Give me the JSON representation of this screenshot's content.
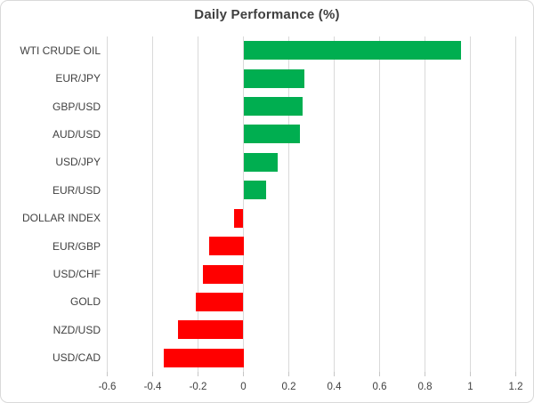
{
  "chart_data": {
    "type": "bar",
    "orientation": "horizontal",
    "title": "Daily Performance (%)",
    "categories": [
      "WTI CRUDE OIL",
      "EUR/JPY",
      "GBP/USD",
      "AUD/USD",
      "USD/JPY",
      "EUR/USD",
      "DOLLAR INDEX",
      "EUR/GBP",
      "USD/CHF",
      "GOLD",
      "NZD/USD",
      "USD/CAD"
    ],
    "values": [
      0.96,
      0.27,
      0.26,
      0.25,
      0.15,
      0.1,
      -0.04,
      -0.15,
      -0.18,
      -0.21,
      -0.29,
      -0.35
    ],
    "xlabel": "",
    "ylabel": "",
    "xlim": [
      -0.6,
      1.2
    ],
    "x_ticks": [
      -0.6,
      -0.4,
      -0.2,
      0,
      0.2,
      0.4,
      0.6,
      0.8,
      1,
      1.2
    ],
    "x_tick_labels": [
      "-0.6",
      "-0.4",
      "-0.2",
      "0",
      "0.2",
      "0.4",
      "0.6",
      "0.8",
      "1",
      "1.2"
    ],
    "grid": "vertical-only",
    "legend": "none",
    "colors": {
      "positive": "#00AE50",
      "negative": "#FF0000",
      "gridline": "#D9D9D9",
      "tick": "#C6C6C6",
      "axis_text": "#404040",
      "title_text": "#3F3F3F",
      "border": "#D9D9D9",
      "background": "#FFFFFF"
    }
  }
}
